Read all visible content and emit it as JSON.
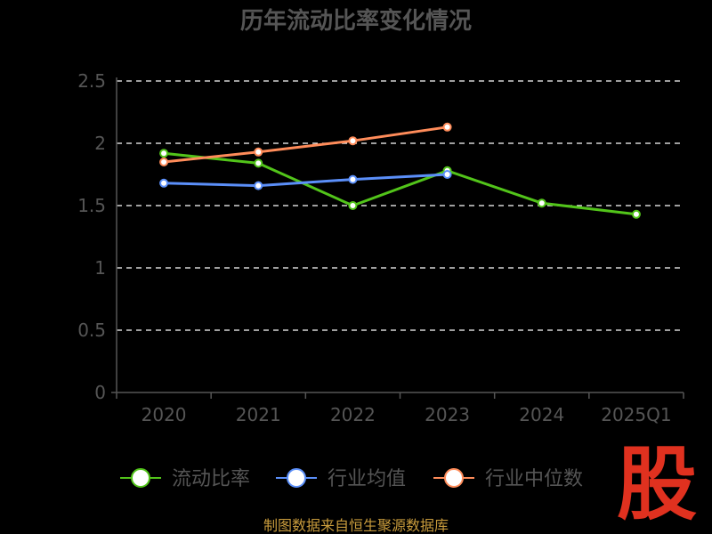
{
  "chart_data": {
    "type": "line",
    "title": "历年流动比率变化情况",
    "categories": [
      "2020",
      "2021",
      "2022",
      "2023",
      "2024",
      "2025Q1"
    ],
    "ylim": [
      0,
      2.5
    ],
    "yticks": [
      0,
      0.5,
      1,
      1.5,
      2,
      2.5
    ],
    "grid": true,
    "legend_placement": "bottom",
    "series": [
      {
        "name": "流动比率",
        "color": "#52c41a",
        "values": [
          1.92,
          1.84,
          1.5,
          1.78,
          1.52,
          1.43
        ]
      },
      {
        "name": "行业均值",
        "color": "#5b8ff9",
        "values": [
          1.68,
          1.66,
          1.71,
          1.75,
          null,
          null
        ]
      },
      {
        "name": "行业中位数",
        "color": "#ff8c5a",
        "values": [
          1.85,
          1.93,
          2.02,
          2.13,
          null,
          null
        ]
      }
    ]
  },
  "watermark_text": "股",
  "footer_text": "制图数据来自恒生聚源数据库",
  "colors": {
    "background": "#000000",
    "text": "#555555",
    "grid": "#ffffff",
    "footer": "#c89b3c",
    "watermark": "#e0311f"
  }
}
